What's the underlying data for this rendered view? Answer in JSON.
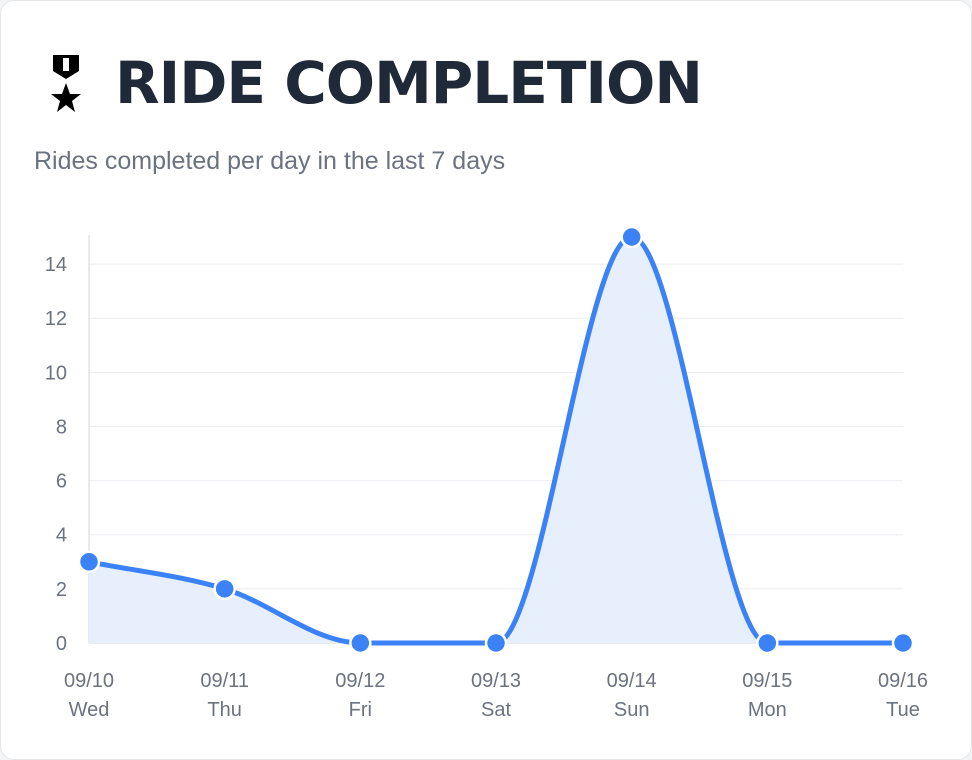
{
  "header": {
    "icon": "military-medal-icon",
    "title": "RIDE COMPLETION",
    "subtitle": "Rides completed per day in the last 7 days"
  },
  "colors": {
    "line": "#3b82f6",
    "fill": "#e8effc",
    "title": "#1f2937",
    "muted": "#6b7280",
    "grid": "#eceef2"
  },
  "chart_data": {
    "type": "area",
    "x": [
      {
        "date": "09/10",
        "day": "Wed"
      },
      {
        "date": "09/11",
        "day": "Thu"
      },
      {
        "date": "09/12",
        "day": "Fri"
      },
      {
        "date": "09/13",
        "day": "Sat"
      },
      {
        "date": "09/14",
        "day": "Sun"
      },
      {
        "date": "09/15",
        "day": "Mon"
      },
      {
        "date": "09/16",
        "day": "Tue"
      }
    ],
    "series": [
      {
        "values": [
          3,
          2,
          0,
          0,
          15,
          0,
          0
        ]
      }
    ],
    "yticks": [
      "0",
      "2",
      "4",
      "6",
      "8",
      "10",
      "12",
      "14"
    ],
    "ylim": [
      0,
      15
    ],
    "grid": true,
    "smooth": true,
    "legend": "none"
  }
}
